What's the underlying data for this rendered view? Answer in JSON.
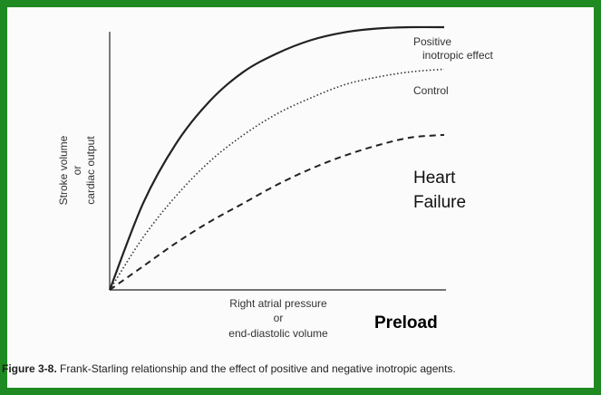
{
  "chart_data": {
    "type": "line",
    "xlabel_lines": [
      "Right atrial pressure",
      "or",
      "end-diastolic volume"
    ],
    "ylabel_lines": [
      "Stroke volume",
      "or",
      "cardiac output"
    ],
    "preload_label": "Preload",
    "xlim": [
      0,
      10
    ],
    "ylim": [
      0,
      10
    ],
    "grid": false,
    "series": [
      {
        "name": "Positive inotropic effect",
        "label_lines": [
          "Positive",
          "inotropic effect"
        ],
        "style": "solid",
        "x": [
          0,
          1,
          2,
          3,
          4,
          5,
          6,
          7,
          8,
          9,
          10
        ],
        "y": [
          0,
          3.3,
          5.6,
          7.2,
          8.3,
          9.0,
          9.5,
          9.8,
          9.95,
          10.0,
          10.0
        ]
      },
      {
        "name": "Control",
        "label_lines": [
          "Control"
        ],
        "style": "dotted",
        "x": [
          0,
          1,
          2,
          3,
          4,
          5,
          6,
          7,
          8,
          9,
          10
        ],
        "y": [
          0,
          2.0,
          3.6,
          4.9,
          5.9,
          6.7,
          7.3,
          7.8,
          8.1,
          8.3,
          8.4
        ]
      },
      {
        "name": "Heart Failure",
        "label_lines": [
          "Heart",
          "Failure"
        ],
        "style": "dashed",
        "x": [
          0,
          1,
          2,
          3,
          4,
          5,
          6,
          7,
          8,
          9,
          10
        ],
        "y": [
          0,
          0.9,
          1.8,
          2.6,
          3.3,
          4.0,
          4.6,
          5.1,
          5.5,
          5.8,
          5.9
        ]
      }
    ]
  },
  "caption": {
    "figure_number": "Figure 3-8.",
    "text": "Frank-Starling relationship and the effect of positive and negative inotropic agents."
  }
}
